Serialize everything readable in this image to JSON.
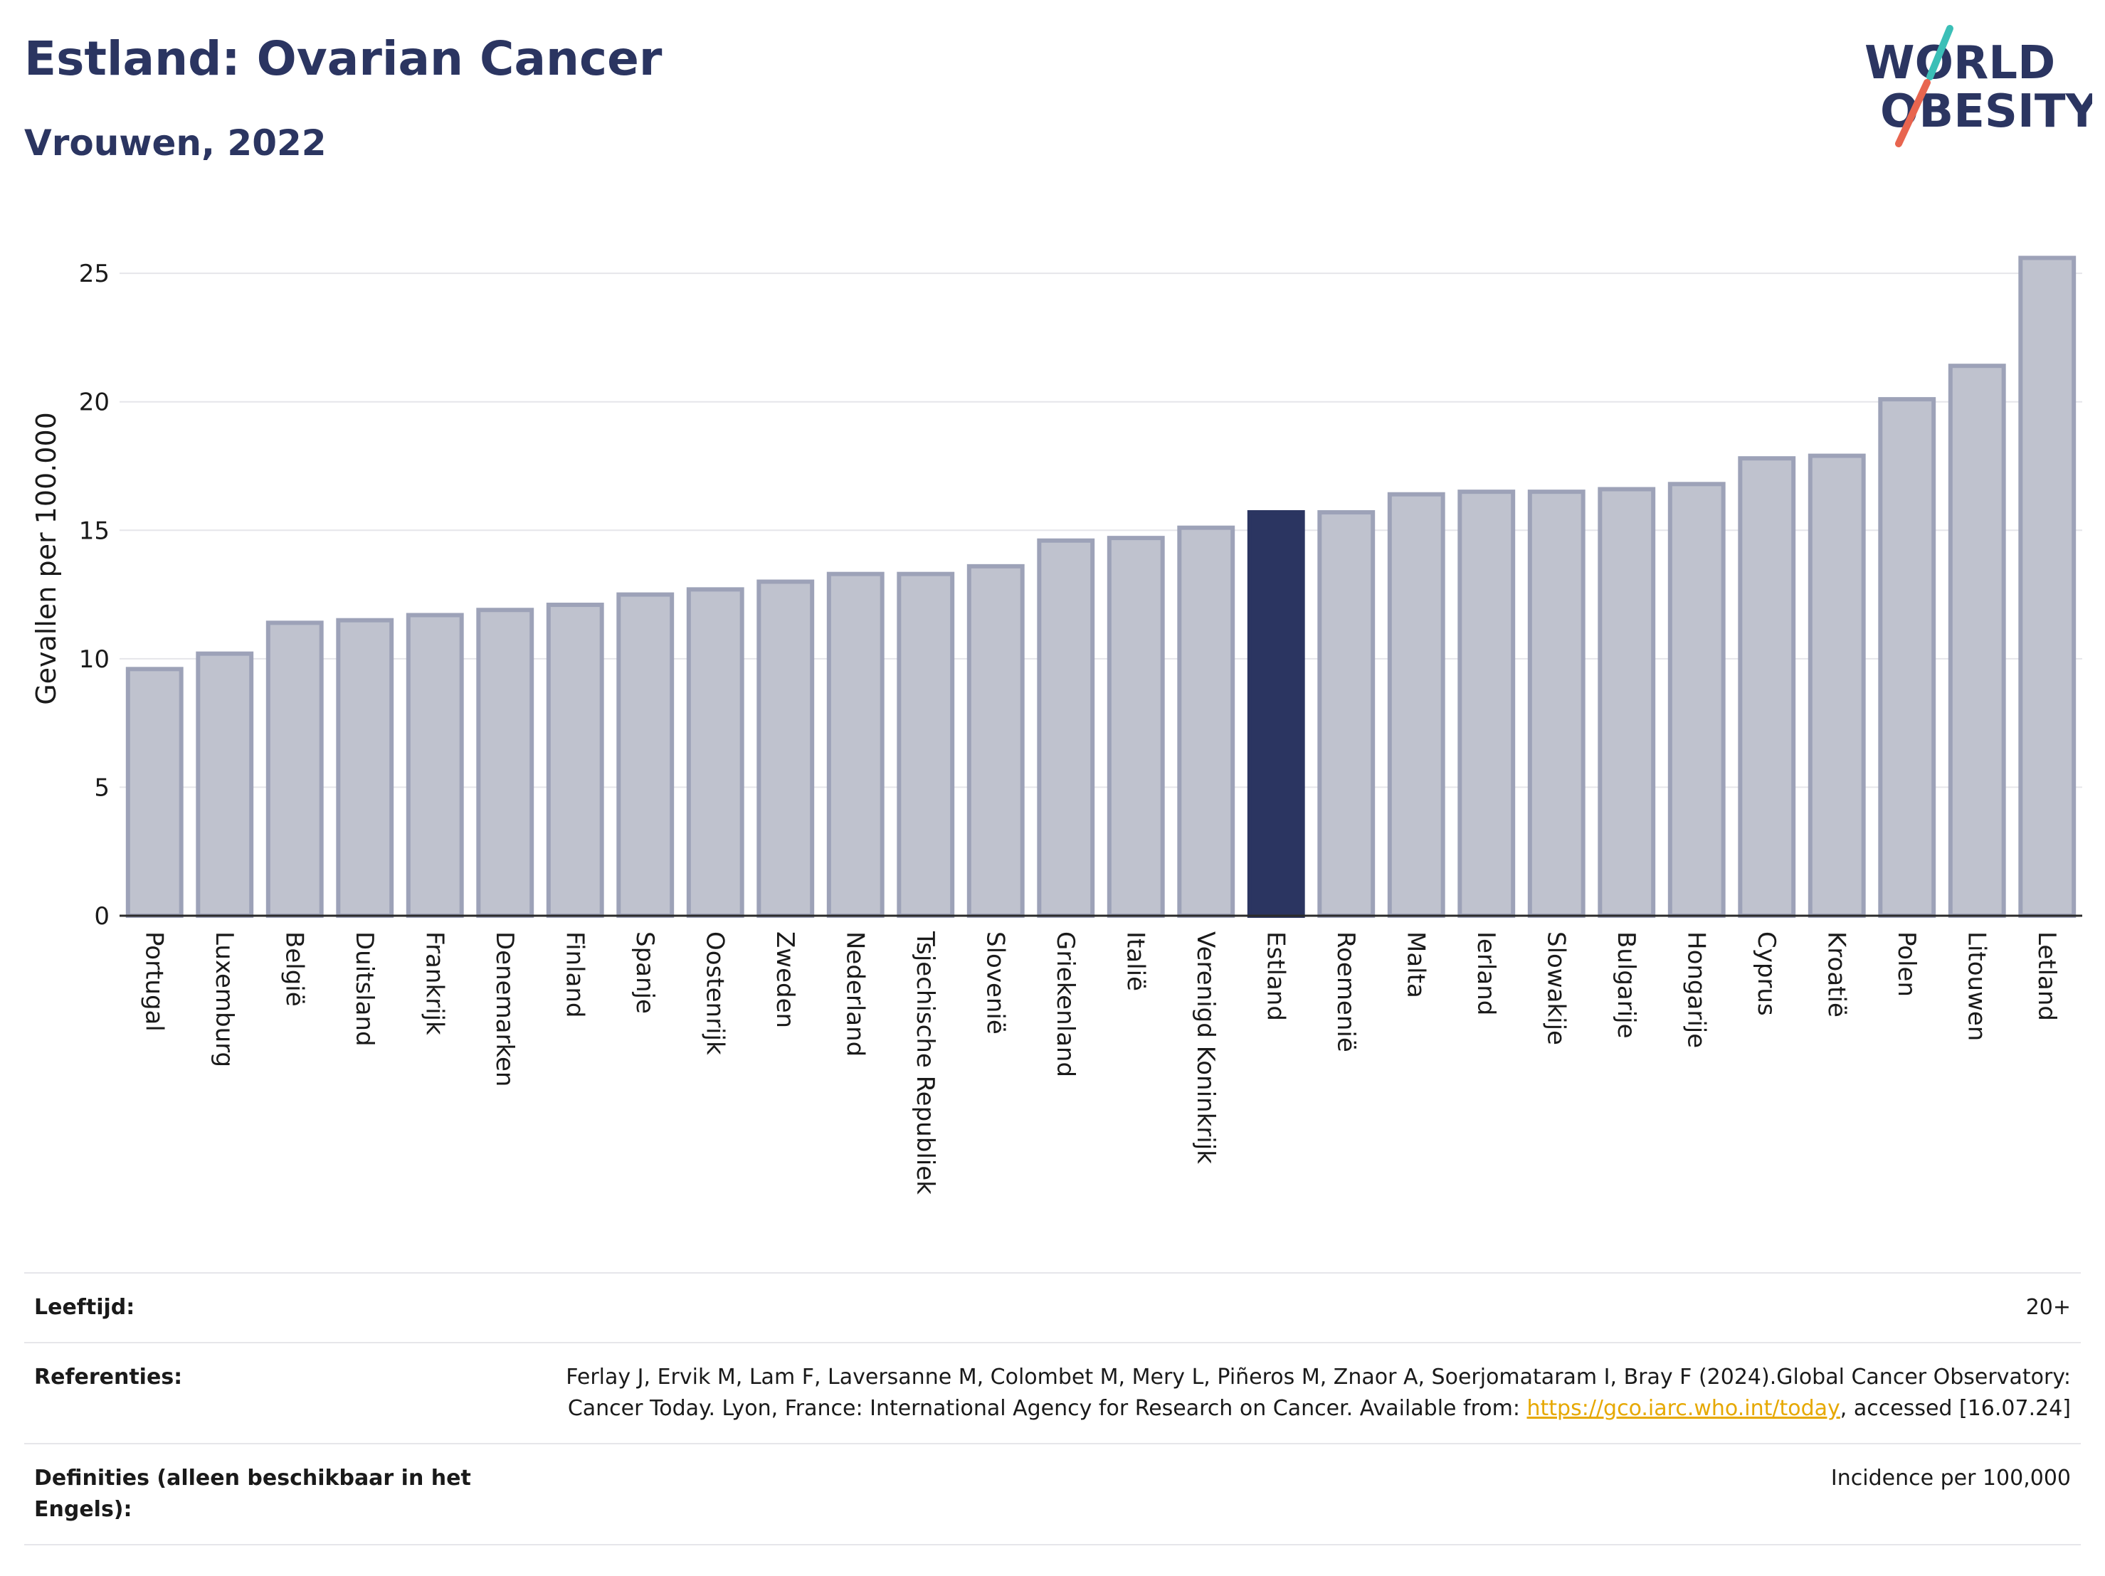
{
  "header": {
    "title": "Estland: Ovarian Cancer",
    "subtitle": "Vrouwen, 2022"
  },
  "logo": {
    "line1": "WORLD",
    "line2": "OBESITY",
    "color": "#2b3561",
    "accent_teal": "#3bbfb7",
    "accent_red": "#e8654f"
  },
  "chart_data": {
    "type": "bar",
    "title": "Estland: Ovarian Cancer",
    "subtitle": "Vrouwen, 2022",
    "ylabel": "Gevallen per 100.000",
    "xlabel": "",
    "ylim": [
      0,
      26.5
    ],
    "yticks": [
      0,
      5,
      10,
      15,
      20,
      25
    ],
    "grid": true,
    "highlight": "Estland",
    "colors": {
      "bar": "#bfc2ce",
      "bar_edge": "#9da2b8",
      "highlight": "#2b3561",
      "grid": "#e6e6ea"
    },
    "categories": [
      "Portugal",
      "Luxemburg",
      "België",
      "Duitsland",
      "Frankrijk",
      "Denemarken",
      "Finland",
      "Spanje",
      "Oostenrijk",
      "Zweden",
      "Nederland",
      "Tsjechische Republiek",
      "Slovenië",
      "Griekenland",
      "Italië",
      "Verenigd Koninkrijk",
      "Estland",
      "Roemenië",
      "Malta",
      "Ierland",
      "Slowakije",
      "Bulgarije",
      "Hongarije",
      "Cyprus",
      "Kroatië",
      "Polen",
      "Litouwen",
      "Letland"
    ],
    "values": [
      9.6,
      10.2,
      11.4,
      11.5,
      11.7,
      11.9,
      12.1,
      12.5,
      12.7,
      13.0,
      13.3,
      13.3,
      13.6,
      14.6,
      14.7,
      15.1,
      15.7,
      15.7,
      16.4,
      16.5,
      16.5,
      16.6,
      16.8,
      17.8,
      17.9,
      20.1,
      21.4,
      25.6
    ]
  },
  "info": {
    "age_label": "Leeftijd:",
    "age_value": "20+",
    "ref_label": "Referenties:",
    "ref_text_1": "Ferlay J, Ervik M, Lam F, Laversanne M, Colombet M, Mery L, Piñeros M, Znaor A, Soerjomataram I, Bray F (2024).Global Cancer Observatory: Cancer Today. Lyon, France: International Agency for Research on Cancer. Available from: ",
    "ref_link": "https://gco.iarc.who.int/today",
    "ref_text_2": ", accessed [16.07.24]",
    "def_label": "Definities (alleen beschikbaar in het Engels):",
    "def_value": "Incidence per 100,000"
  }
}
